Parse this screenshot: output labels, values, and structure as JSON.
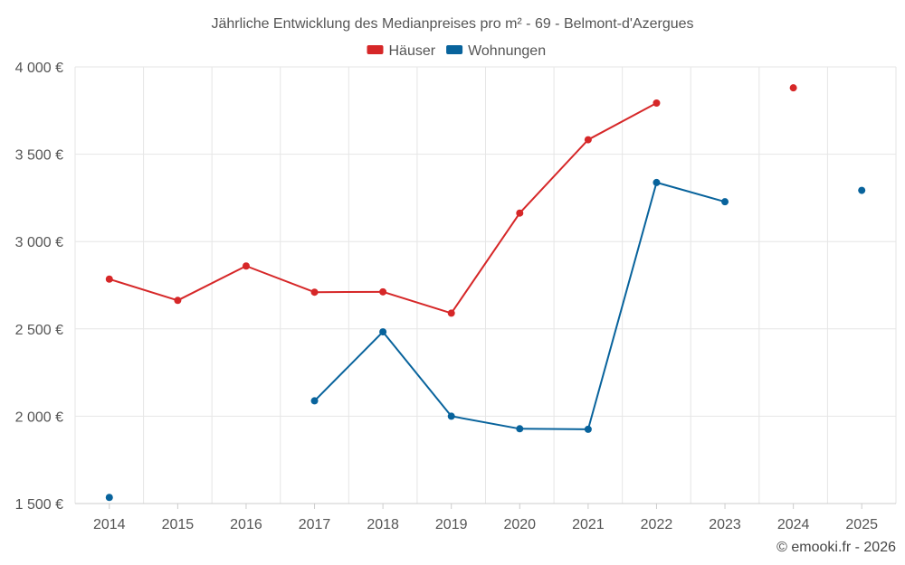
{
  "chart_data": {
    "type": "line",
    "title": "Jährliche Entwicklung des Medianpreises pro m² - 69 - Belmont-d'Azergues",
    "categories": [
      "2014",
      "2015",
      "2016",
      "2017",
      "2018",
      "2019",
      "2020",
      "2021",
      "2022",
      "2023",
      "2024",
      "2025"
    ],
    "series": [
      {
        "name": "Häuser",
        "color": "#d62728",
        "values": [
          2785,
          2663,
          2860,
          2710,
          2712,
          2590,
          3163,
          3583,
          3793,
          null,
          3880,
          null
        ]
      },
      {
        "name": "Wohnungen",
        "color": "#08639c",
        "values": [
          1535,
          null,
          null,
          2088,
          2483,
          2000,
          1928,
          1925,
          3338,
          3228,
          null,
          3293
        ]
      }
    ],
    "ylim": [
      1500,
      4000
    ],
    "yticks": [
      1500,
      2000,
      2500,
      3000,
      3500,
      4000
    ],
    "ytick_labels": [
      "1 500 €",
      "2 000 €",
      "2 500 €",
      "3 000 €",
      "3 500 €",
      "4 000 €"
    ],
    "xlabel": "",
    "ylabel": "",
    "grid": true,
    "legend_position": "top-center"
  },
  "credit": "© emooki.fr - 2026"
}
